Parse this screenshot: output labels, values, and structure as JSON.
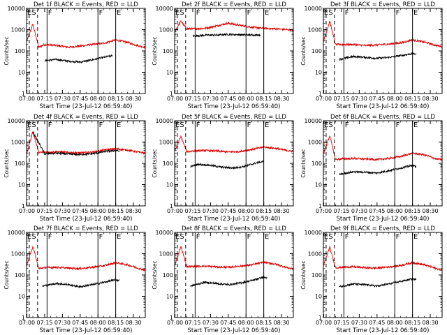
{
  "figure": {
    "xlabel": "Start Time (23-Jul-12 06:59:40)",
    "ylabel": "Counts/sec",
    "xticks": [
      "07:00",
      "07:15",
      "07:30",
      "07:45",
      "08:00",
      "08:15",
      "08:30"
    ],
    "yticks": [
      "1",
      "10",
      "100",
      "1000",
      "10000"
    ],
    "markers": [
      "ES",
      "F",
      "F",
      "E"
    ],
    "colors": {
      "events": "#000000",
      "lld": "#e00000",
      "axis": "#000000"
    }
  },
  "chart_data": [
    {
      "type": "line",
      "title": "Det 1f BLACK = Events, RED = LLD",
      "x_range": [
        "06:59:40",
        "08:40"
      ],
      "ylim": [
        1,
        10000
      ],
      "yscale": "log",
      "dashed_lines": [
        "07:02",
        "07:09"
      ],
      "solid_lines": [
        "07:17",
        "08:00",
        "08:15"
      ],
      "series": [
        {
          "name": "Events",
          "color": "#000000",
          "x": [
            "07:15",
            "07:25",
            "07:35",
            "07:45",
            "07:55",
            "08:05",
            "08:12"
          ],
          "values": [
            35,
            40,
            33,
            30,
            38,
            50,
            60
          ]
        },
        {
          "name": "LLD",
          "color": "#e00000",
          "x": [
            "07:00",
            "07:05",
            "07:10",
            "07:15",
            "07:25",
            "07:35",
            "07:45",
            "07:55",
            "08:05",
            "08:15",
            "08:25",
            "08:35",
            "08:40"
          ],
          "values": [
            300,
            1800,
            150,
            200,
            180,
            150,
            170,
            200,
            230,
            330,
            250,
            170,
            150
          ]
        }
      ]
    },
    {
      "type": "line",
      "title": "Det 2f BLACK = Events, RED = LLD",
      "x_range": [
        "06:59:40",
        "08:40"
      ],
      "ylim": [
        1,
        10000
      ],
      "yscale": "log",
      "dashed_lines": [
        "07:02",
        "07:09"
      ],
      "solid_lines": [
        "07:17",
        "08:00",
        "08:15"
      ],
      "series": [
        {
          "name": "Events",
          "color": "#000000",
          "x": [
            "07:15",
            "07:25",
            "07:35",
            "07:45",
            "07:55",
            "08:05",
            "08:12"
          ],
          "values": [
            500,
            550,
            560,
            600,
            580,
            560,
            570
          ]
        },
        {
          "name": "LLD",
          "color": "#e00000",
          "x": [
            "07:00",
            "07:05",
            "07:10",
            "07:15",
            "07:25",
            "07:35",
            "07:45",
            "07:55",
            "08:05",
            "08:15",
            "08:25",
            "08:35",
            "08:40"
          ],
          "values": [
            900,
            2500,
            1100,
            1100,
            1150,
            1500,
            2000,
            1600,
            1300,
            1150,
            1100,
            1000,
            950
          ]
        }
      ]
    },
    {
      "type": "line",
      "title": "Det 3f BLACK = Events, RED = LLD",
      "x_range": [
        "06:59:40",
        "08:40"
      ],
      "ylim": [
        1,
        10000
      ],
      "yscale": "log",
      "dashed_lines": [
        "07:02",
        "07:09"
      ],
      "solid_lines": [
        "07:17",
        "08:00",
        "08:15"
      ],
      "series": [
        {
          "name": "Events",
          "color": "#000000",
          "x": [
            "07:13",
            "07:25",
            "07:35",
            "07:45",
            "07:55",
            "08:05",
            "08:15",
            "08:18"
          ],
          "values": [
            40,
            55,
            50,
            45,
            50,
            60,
            75,
            70
          ]
        },
        {
          "name": "LLD",
          "color": "#e00000",
          "x": [
            "07:00",
            "07:05",
            "07:10",
            "07:15",
            "07:25",
            "07:35",
            "07:45",
            "07:55",
            "08:05",
            "08:15",
            "08:25",
            "08:35",
            "08:40"
          ],
          "values": [
            300,
            2500,
            200,
            200,
            200,
            180,
            190,
            210,
            240,
            330,
            260,
            180,
            160
          ]
        }
      ]
    },
    {
      "type": "line",
      "title": "Det 4f BLACK = Events, RED = LLD",
      "x_range": [
        "06:59:40",
        "08:40"
      ],
      "ylim": [
        1,
        10000
      ],
      "yscale": "log",
      "dashed_lines": [
        "07:02",
        "07:09"
      ],
      "solid_lines": [
        "07:17",
        "08:00",
        "08:15"
      ],
      "series": [
        {
          "name": "Events",
          "color": "#000000",
          "x": [
            "07:05",
            "07:15",
            "07:25",
            "07:35",
            "07:45",
            "07:55",
            "08:05",
            "08:15",
            "08:18"
          ],
          "values": [
            3000,
            280,
            300,
            270,
            260,
            280,
            350,
            400,
            380
          ]
        },
        {
          "name": "LLD",
          "color": "#e00000",
          "x": [
            "07:00",
            "07:05",
            "07:10",
            "07:15",
            "07:25",
            "07:35",
            "07:45",
            "07:55",
            "08:05",
            "08:15",
            "08:25",
            "08:35",
            "08:40"
          ],
          "values": [
            300,
            3200,
            320,
            330,
            350,
            320,
            310,
            330,
            420,
            480,
            420,
            330,
            300
          ]
        }
      ]
    },
    {
      "type": "line",
      "title": "Det 5f BLACK = Events, RED = LLD",
      "x_range": [
        "06:59:40",
        "08:40"
      ],
      "ylim": [
        1,
        10000
      ],
      "yscale": "log",
      "dashed_lines": [
        "07:02",
        "07:09"
      ],
      "solid_lines": [
        "07:17",
        "08:00",
        "08:15"
      ],
      "series": [
        {
          "name": "Events",
          "color": "#000000",
          "x": [
            "07:13",
            "07:20",
            "07:30",
            "07:40",
            "07:50",
            "08:00",
            "08:10",
            "08:15"
          ],
          "values": [
            70,
            90,
            80,
            65,
            60,
            75,
            110,
            120
          ]
        },
        {
          "name": "LLD",
          "color": "#e00000",
          "x": [
            "07:00",
            "07:05",
            "07:10",
            "07:15",
            "07:25",
            "07:35",
            "07:45",
            "07:55",
            "08:05",
            "08:15",
            "08:25",
            "08:35",
            "08:40"
          ],
          "values": [
            400,
            1800,
            350,
            380,
            400,
            380,
            340,
            360,
            450,
            580,
            500,
            400,
            350
          ]
        }
      ]
    },
    {
      "type": "line",
      "title": "Det 6f BLACK = Events, RED = LLD",
      "x_range": [
        "06:59:40",
        "08:40"
      ],
      "ylim": [
        1,
        10000
      ],
      "yscale": "log",
      "dashed_lines": [
        "07:02",
        "07:09"
      ],
      "solid_lines": [
        "07:17",
        "08:00",
        "08:15"
      ],
      "series": [
        {
          "name": "Events",
          "color": "#000000",
          "x": [
            "07:13",
            "07:25",
            "07:35",
            "07:45",
            "07:55",
            "08:05",
            "08:15",
            "08:18"
          ],
          "values": [
            30,
            40,
            38,
            35,
            45,
            60,
            80,
            70
          ]
        },
        {
          "name": "LLD",
          "color": "#e00000",
          "x": [
            "07:00",
            "07:05",
            "07:10",
            "07:15",
            "07:25",
            "07:35",
            "07:45",
            "07:55",
            "08:05",
            "08:15",
            "08:25",
            "08:35",
            "08:40"
          ],
          "values": [
            300,
            2000,
            150,
            160,
            170,
            160,
            150,
            170,
            210,
            300,
            250,
            160,
            150
          ]
        }
      ]
    },
    {
      "type": "line",
      "title": "Det 7f BLACK = Events, RED = LLD",
      "x_range": [
        "06:59:40",
        "08:40"
      ],
      "ylim": [
        1,
        10000
      ],
      "yscale": "log",
      "dashed_lines": [
        "07:02",
        "07:09"
      ],
      "solid_lines": [
        "07:17",
        "08:00",
        "08:15"
      ],
      "series": [
        {
          "name": "Events",
          "color": "#000000",
          "x": [
            "07:13",
            "07:25",
            "07:35",
            "07:45",
            "07:55",
            "08:05",
            "08:15",
            "08:18"
          ],
          "values": [
            30,
            40,
            35,
            28,
            35,
            45,
            60,
            55
          ]
        },
        {
          "name": "LLD",
          "color": "#e00000",
          "x": [
            "07:00",
            "07:05",
            "07:10",
            "07:15",
            "07:25",
            "07:35",
            "07:45",
            "07:55",
            "08:05",
            "08:15",
            "08:25",
            "08:35",
            "08:40"
          ],
          "values": [
            300,
            2200,
            200,
            220,
            230,
            210,
            200,
            230,
            270,
            380,
            300,
            200,
            170
          ]
        }
      ]
    },
    {
      "type": "line",
      "title": "Det 8f BLACK = Events, RED = LLD",
      "x_range": [
        "06:59:40",
        "08:40"
      ],
      "ylim": [
        1,
        10000
      ],
      "yscale": "log",
      "dashed_lines": [
        "07:02",
        "07:09"
      ],
      "solid_lines": [
        "07:17",
        "08:00",
        "08:15"
      ],
      "series": [
        {
          "name": "Events",
          "color": "#000000",
          "x": [
            "07:13",
            "07:25",
            "07:35",
            "07:45",
            "07:55",
            "08:05",
            "08:15",
            "08:18"
          ],
          "values": [
            30,
            45,
            40,
            35,
            42,
            55,
            80,
            70
          ]
        },
        {
          "name": "LLD",
          "color": "#e00000",
          "x": [
            "07:00",
            "07:05",
            "07:10",
            "07:15",
            "07:25",
            "07:35",
            "07:45",
            "07:55",
            "08:05",
            "08:15",
            "08:25",
            "08:35",
            "08:40"
          ],
          "values": [
            300,
            2200,
            250,
            250,
            260,
            240,
            230,
            260,
            300,
            400,
            320,
            220,
            190
          ]
        }
      ]
    },
    {
      "type": "line",
      "title": "Det 9f BLACK = Events, RED = LLD",
      "x_range": [
        "06:59:40",
        "08:40"
      ],
      "ylim": [
        1,
        10000
      ],
      "yscale": "log",
      "dashed_lines": [
        "07:02",
        "07:09"
      ],
      "solid_lines": [
        "07:17",
        "08:00",
        "08:15"
      ],
      "series": [
        {
          "name": "Events",
          "color": "#000000",
          "x": [
            "07:13",
            "07:25",
            "07:35",
            "07:45",
            "07:55",
            "08:05",
            "08:15",
            "08:18"
          ],
          "values": [
            28,
            38,
            35,
            30,
            38,
            50,
            65,
            60
          ]
        },
        {
          "name": "LLD",
          "color": "#e00000",
          "x": [
            "07:00",
            "07:05",
            "07:10",
            "07:15",
            "07:25",
            "07:35",
            "07:45",
            "07:55",
            "08:05",
            "08:15",
            "08:25",
            "08:35",
            "08:40"
          ],
          "values": [
            300,
            2000,
            220,
            230,
            240,
            220,
            210,
            240,
            280,
            380,
            300,
            200,
            170
          ]
        }
      ]
    }
  ]
}
